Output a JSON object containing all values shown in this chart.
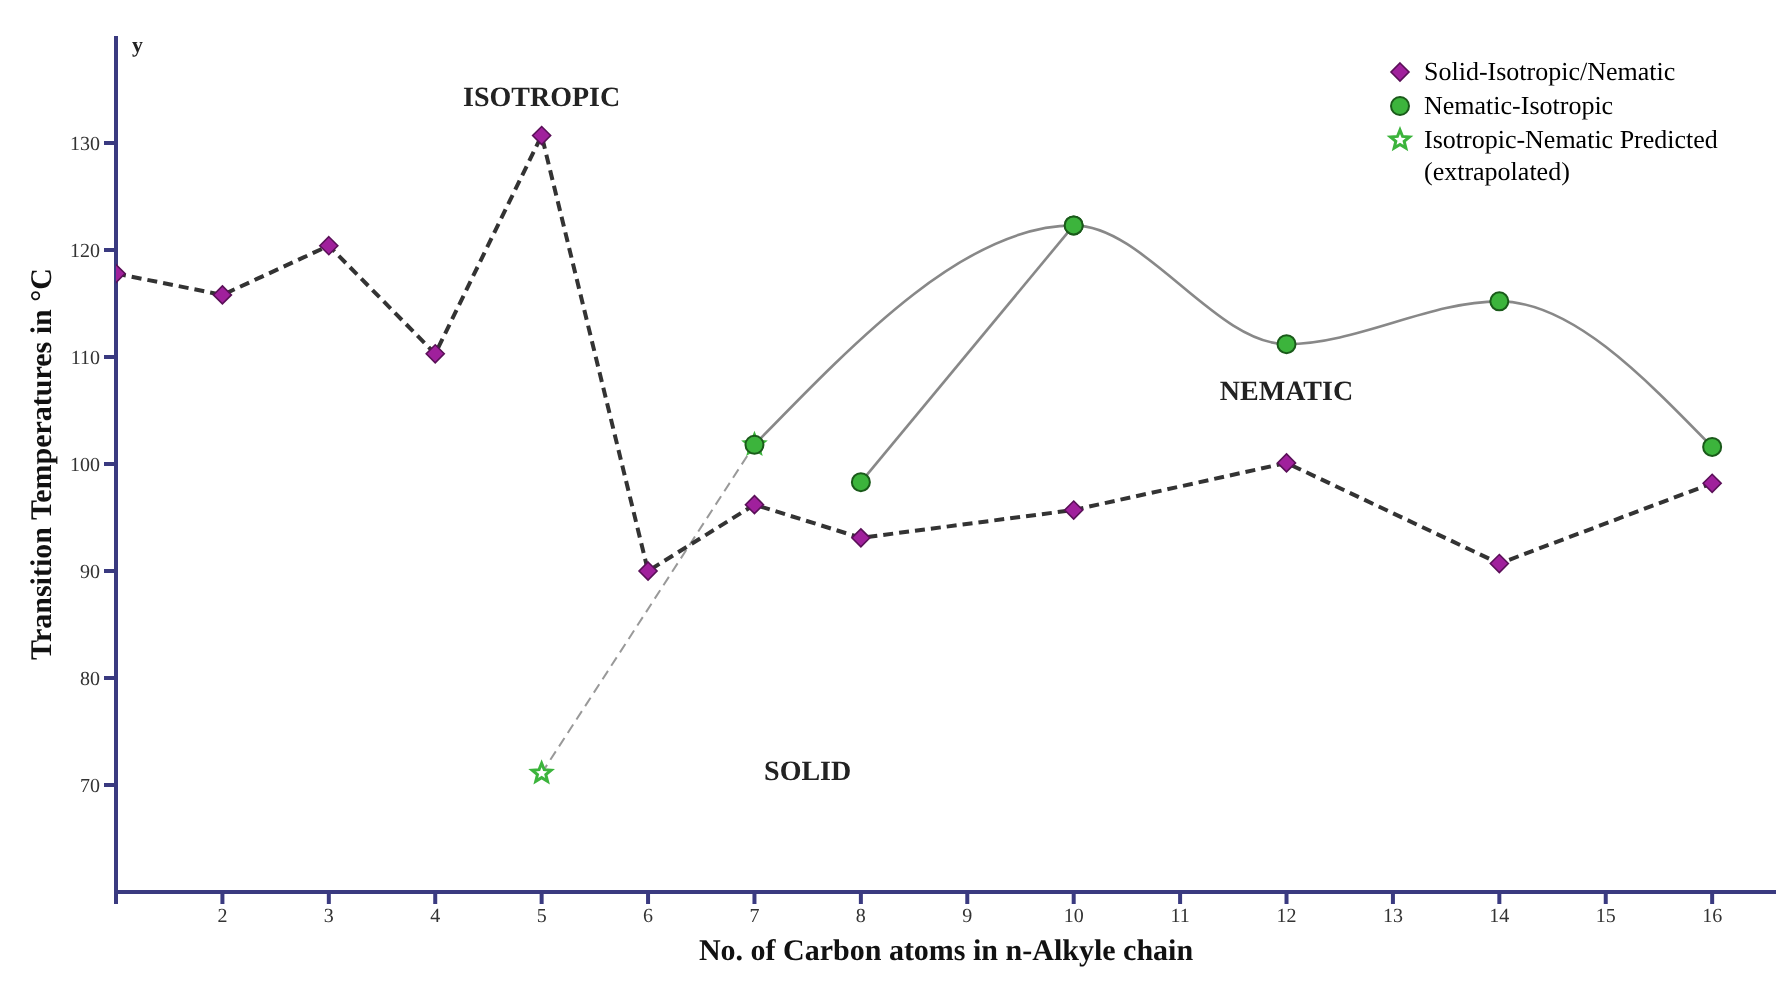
{
  "chart_data": {
    "type": "line",
    "xlabel": "No. of Carbon atoms in n-Alkyle chain",
    "ylabel": "Transition Temperatures in °C",
    "xlim": [
      1,
      16.6
    ],
    "xticks": [
      {
        "value": 1,
        "label": null
      },
      2,
      3,
      4,
      5,
      6,
      7,
      8,
      9,
      10,
      11,
      12,
      13,
      14,
      15,
      16
    ],
    "ylim": [
      60,
      140
    ],
    "yticks": [
      70,
      80,
      90,
      100,
      110,
      120,
      130
    ],
    "series": [
      {
        "name": "Solid-Isotropic/Nematic",
        "color": "#a0209c",
        "x": [
          1,
          2,
          3,
          4,
          5,
          6,
          7,
          8,
          10,
          12,
          14,
          16
        ],
        "values": [
          117.8,
          115.8,
          120.4,
          110.3,
          130.7,
          90,
          96.2,
          93.1,
          95.7,
          100.1,
          90.7,
          98.2
        ],
        "marker": "diamond",
        "line_style": "dashed"
      },
      {
        "name": "Nematic-Isotropic",
        "color": "#3cb43c",
        "x": [
          7,
          10,
          12,
          14,
          16
        ],
        "values": [
          101.8,
          122.3,
          111.2,
          115.2,
          101.6
        ],
        "marker": "circle",
        "line_style": "solid"
      },
      {
        "name": "Isotropic-Nematic Predicted (extrapolated)",
        "color": "#3cb43c",
        "x": [
          5,
          7
        ],
        "values": [
          71.1,
          101.8
        ],
        "marker": "star",
        "line_style": "dashed"
      },
      {
        "color": "#3cb43c",
        "x": [
          8,
          10
        ],
        "values": [
          98.3,
          122.3
        ],
        "marker": "circle",
        "line_style": "solid"
      }
    ],
    "annotations": [
      "y",
      "ISOTROPIC",
      "NEMATIC",
      "SOLID"
    ],
    "legend": "top right"
  }
}
